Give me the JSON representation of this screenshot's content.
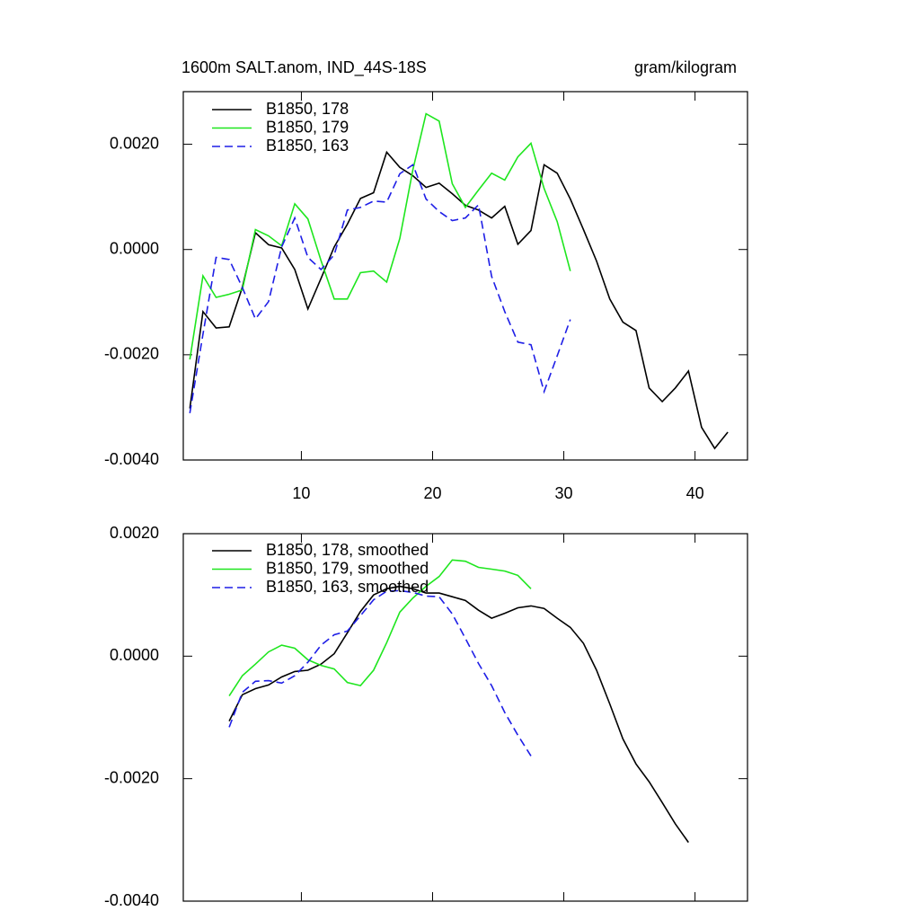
{
  "chart_data": [
    {
      "type": "line",
      "title": "1600m SALT.anom, IND_44S-18S",
      "units": "gram/kilogram",
      "xlim": [
        1,
        44
      ],
      "xticks": [
        10,
        20,
        30,
        40
      ],
      "ylim": [
        -0.004,
        0.003
      ],
      "yticks": [
        {
          "value": 0.002,
          "label": "0.0020"
        },
        {
          "value": 0,
          "label": "0.0000"
        },
        {
          "value": -0.002,
          "label": "-0.0020"
        },
        {
          "value": -0.004,
          "label": "-0.0040"
        }
      ],
      "series": [
        {
          "name": "B1850, 178",
          "color": "#000000",
          "dash": false,
          "x": [
            1.5,
            2.5,
            3.5,
            4.5,
            5.5,
            6.5,
            7.5,
            8.5,
            9.5,
            10.5,
            11.5,
            12.5,
            13.5,
            14.5,
            15.5,
            16.5,
            17.5,
            18.5,
            19.5,
            20.5,
            21.5,
            22.5,
            23.5,
            24.5,
            25.5,
            26.5,
            27.5,
            28.5,
            29.5,
            30.5,
            31.5,
            32.5,
            33.5,
            34.5,
            35.5,
            36.5,
            37.5,
            38.5,
            39.5,
            40.5,
            41.5,
            42.5
          ],
          "values": [
            -0.00302,
            -0.00118,
            -0.00149,
            -0.00147,
            -0.00072,
            0.00032,
            9e-05,
            3e-05,
            -0.00038,
            -0.00113,
            -0.00055,
            5e-05,
            0.00048,
            0.00097,
            0.00108,
            0.00185,
            0.00156,
            0.0014,
            0.00118,
            0.00126,
            0.00106,
            0.00084,
            0.00075,
            0.0006,
            0.00082,
            0.0001,
            0.00036,
            0.00161,
            0.00145,
            0.00096,
            0.00038,
            -0.00022,
            -0.00094,
            -0.00138,
            -0.00154,
            -0.00263,
            -0.00289,
            -0.00263,
            -0.00231,
            -0.00338,
            -0.00378,
            -0.00347
          ]
        },
        {
          "name": "B1850, 179",
          "color": "#1ee61e",
          "dash": false,
          "x": [
            1.5,
            2.5,
            3.5,
            4.5,
            5.5,
            6.5,
            7.5,
            8.5,
            9.5,
            10.5,
            11.5,
            12.5,
            13.5,
            14.5,
            15.5,
            16.5,
            17.5,
            18.5,
            19.5,
            20.5,
            21.5,
            22.5,
            23.5,
            24.5,
            25.5,
            26.5,
            27.5,
            28.5,
            29.5,
            30.5
          ],
          "values": [
            -0.00209,
            -0.0005,
            -0.00091,
            -0.00085,
            -0.00077,
            0.00038,
            0.00026,
            7e-05,
            0.00087,
            0.00058,
            -0.00021,
            -0.00094,
            -0.00094,
            -0.00044,
            -0.00041,
            -0.00062,
            0.00021,
            0.00152,
            0.00258,
            0.00244,
            0.00125,
            0.0008,
            0.00113,
            0.00145,
            0.00132,
            0.00176,
            0.00202,
            0.00116,
            0.00053,
            -0.00041
          ]
        },
        {
          "name": "B1850, 163",
          "color": "#1e1ee6",
          "dash": true,
          "x": [
            1.5,
            2.5,
            3.5,
            4.5,
            5.5,
            6.5,
            7.5,
            8.5,
            9.5,
            10.5,
            11.5,
            12.5,
            13.5,
            14.5,
            15.5,
            16.5,
            17.5,
            18.5,
            19.5,
            20.5,
            21.5,
            22.5,
            23.5,
            24.5,
            25.5,
            26.5,
            27.5,
            28.5,
            29.5,
            30.5
          ],
          "values": [
            -0.00311,
            -0.00161,
            -0.00015,
            -0.00019,
            -0.00072,
            -0.00132,
            -0.00099,
            5e-05,
            0.0006,
            -0.00015,
            -0.00038,
            -0.0001,
            0.00075,
            0.0008,
            0.00092,
            0.0009,
            0.00144,
            0.00161,
            0.00096,
            0.00072,
            0.00055,
            0.0006,
            0.00085,
            -0.00051,
            -0.00118,
            -0.00176,
            -0.00181,
            -0.0027,
            -0.00202,
            -0.00133
          ]
        }
      ]
    },
    {
      "type": "line",
      "xlim": [
        1,
        44
      ],
      "xticks": [
        10,
        20,
        30,
        40
      ],
      "ylim": [
        -0.004,
        0.002
      ],
      "yticks": [
        {
          "value": 0.002,
          "label": "0.0020"
        },
        {
          "value": 0,
          "label": "0.0000"
        },
        {
          "value": -0.002,
          "label": "-0.0020"
        },
        {
          "value": -0.004,
          "label": "-0.0040"
        }
      ],
      "series": [
        {
          "name": "B1850, 178, smoothed",
          "color": "#000000",
          "dash": false,
          "x": [
            4.5,
            5.5,
            6.5,
            7.5,
            8.5,
            9.5,
            10.5,
            11.5,
            12.5,
            13.5,
            14.5,
            15.5,
            16.5,
            17.5,
            18.5,
            19.5,
            20.5,
            21.5,
            22.5,
            23.5,
            24.5,
            25.5,
            26.5,
            27.5,
            28.5,
            29.5,
            30.5,
            31.5,
            32.5,
            33.5,
            34.5,
            35.5,
            36.5,
            37.5,
            38.5,
            39.5
          ],
          "values": [
            -0.00106,
            -0.00063,
            -0.00053,
            -0.00047,
            -0.00034,
            -0.00025,
            -0.00023,
            -0.00013,
            4e-05,
            0.00038,
            0.00073,
            0.001,
            0.0011,
            0.00114,
            0.0011,
            0.00103,
            0.00103,
            0.00097,
            0.00091,
            0.00075,
            0.00062,
            0.0007,
            0.00079,
            0.00082,
            0.00078,
            0.00062,
            0.00047,
            0.00021,
            -0.00023,
            -0.00078,
            -0.00135,
            -0.00176,
            -0.00205,
            -0.00239,
            -0.00274,
            -0.00304
          ]
        },
        {
          "name": "B1850, 179, smoothed",
          "color": "#1ee61e",
          "dash": false,
          "x": [
            4.5,
            5.5,
            6.5,
            7.5,
            8.5,
            9.5,
            10.5,
            11.5,
            12.5,
            13.5,
            14.5,
            15.5,
            16.5,
            17.5,
            18.5,
            19.5,
            20.5,
            21.5,
            22.5,
            23.5,
            24.5,
            25.5,
            26.5,
            27.5
          ],
          "values": [
            -0.00065,
            -0.00032,
            -0.00013,
            7e-05,
            0.00018,
            0.00013,
            -6e-05,
            -0.00015,
            -0.00021,
            -0.00043,
            -0.00048,
            -0.00023,
            0.00022,
            0.00072,
            0.00095,
            0.00114,
            0.0013,
            0.00157,
            0.00155,
            0.00145,
            0.00142,
            0.00139,
            0.00132,
            0.0011
          ]
        },
        {
          "name": "B1850, 163, smoothed",
          "color": "#1e1ee6",
          "dash": true,
          "x": [
            4.5,
            5.5,
            6.5,
            7.5,
            8.5,
            9.5,
            10.5,
            11.5,
            12.5,
            13.5,
            14.5,
            15.5,
            16.5,
            17.5,
            18.5,
            19.5,
            20.5,
            21.5,
            22.5,
            23.5,
            24.5,
            25.5,
            26.5,
            27.5
          ],
          "values": [
            -0.00116,
            -0.00059,
            -0.00041,
            -0.0004,
            -0.00044,
            -0.00032,
            -0.0001,
            0.00018,
            0.00035,
            0.00041,
            0.00066,
            0.00092,
            0.00106,
            0.00107,
            0.00104,
            0.00098,
            0.00097,
            0.00069,
            0.00029,
            -0.00012,
            -0.00048,
            -0.00092,
            -0.00129,
            -0.00163
          ]
        }
      ]
    }
  ]
}
